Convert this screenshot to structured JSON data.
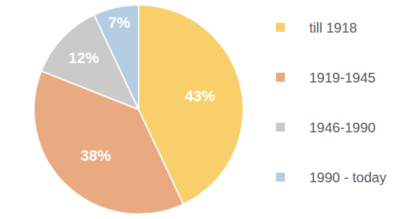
{
  "chart_data": {
    "type": "pie",
    "categories": [
      "till 1918",
      "1919-1945",
      "1946-1990",
      "1990 - today"
    ],
    "values": [
      43,
      38,
      12,
      7
    ],
    "value_labels": [
      "43%",
      "38%",
      "12%",
      "7%"
    ],
    "colors": [
      "#f8cf6a",
      "#e9aa82",
      "#cacaca",
      "#b5cde2"
    ],
    "data_labels": true,
    "legend": "right"
  }
}
